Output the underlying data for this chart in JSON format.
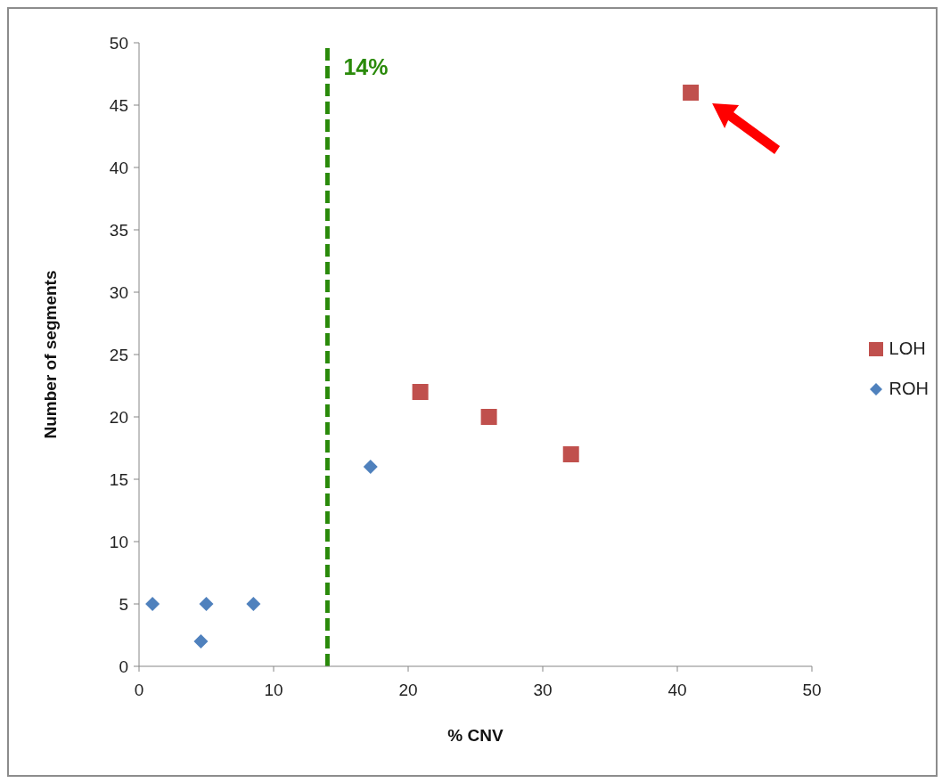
{
  "chart_data": {
    "type": "scatter",
    "xlabel": "% CNV",
    "ylabel": "Number of segments",
    "series": [
      {
        "name": "LOH",
        "color": "#c0504d",
        "marker": "square",
        "x": [
          20.9,
          26,
          32.1,
          41
        ],
        "values": [
          22,
          20,
          17,
          46
        ]
      },
      {
        "name": "ROH",
        "color": "#4f81bd",
        "marker": "diamond",
        "x": [
          1,
          4.6,
          5,
          8.5,
          17.2
        ],
        "values": [
          5,
          2,
          5,
          5,
          16
        ]
      }
    ],
    "xlim": [
      0,
      50
    ],
    "xticks": [
      0,
      10,
      20,
      30,
      40,
      50
    ],
    "ylim": [
      0,
      50
    ],
    "yticks": [
      0,
      5,
      10,
      15,
      20,
      25,
      30,
      35,
      40,
      45,
      50
    ],
    "grid": false,
    "legend": "right",
    "ref_lines": [
      {
        "axis": "x",
        "value": 14,
        "label": "14%",
        "color": "#2a8a0a",
        "line_style": "dashed"
      }
    ]
  }
}
